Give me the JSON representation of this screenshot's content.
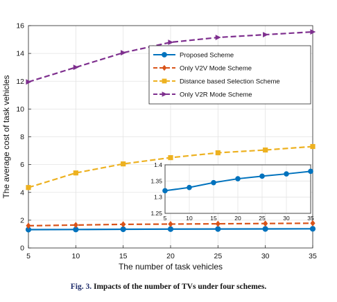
{
  "chart_data": {
    "type": "line",
    "xlabel": "The number of task vehicles",
    "ylabel": "The average cost of task vehicles",
    "x": [
      5,
      10,
      15,
      20,
      25,
      30,
      35
    ],
    "xlim": [
      5,
      35
    ],
    "ylim": [
      0,
      16
    ],
    "xticks": [
      "5",
      "10",
      "15",
      "20",
      "25",
      "30",
      "35"
    ],
    "yticks": [
      "0",
      "2",
      "4",
      "6",
      "8",
      "10",
      "12",
      "14",
      "16"
    ],
    "grid": true,
    "legend_position": "top-right",
    "series": [
      {
        "name": "Proposed Scheme",
        "values": [
          1.32,
          1.33,
          1.345,
          1.357,
          1.365,
          1.372,
          1.38
        ],
        "color": "#0072BD",
        "marker": "circle",
        "style": "solid"
      },
      {
        "name": "Only V2V Mode Scheme",
        "values": [
          1.6,
          1.65,
          1.7,
          1.72,
          1.74,
          1.76,
          1.78
        ],
        "color": "#D95319",
        "marker": "diamond",
        "style": "dashed"
      },
      {
        "name": "Distance based Selection Scheme",
        "values": [
          4.35,
          5.4,
          6.05,
          6.5,
          6.85,
          7.05,
          7.3
        ],
        "color": "#EDB120",
        "marker": "square",
        "style": "dashed"
      },
      {
        "name": "Only V2R Mode Scheme",
        "values": [
          11.95,
          13.0,
          14.05,
          14.8,
          15.15,
          15.35,
          15.55
        ],
        "color": "#7E2F8E",
        "marker": "triangle-right",
        "style": "dashed"
      }
    ],
    "inset": {
      "series": "Proposed Scheme",
      "x": [
        5,
        10,
        15,
        20,
        25,
        30,
        35
      ],
      "xlim": [
        5,
        35
      ],
      "ylim": [
        1.25,
        1.4
      ],
      "xticks": [
        "5",
        "10",
        "15",
        "20",
        "25",
        "30",
        "35"
      ],
      "yticks": [
        "1.25",
        "1.3",
        "1.35",
        "1.4"
      ],
      "values": [
        1.32,
        1.33,
        1.345,
        1.357,
        1.365,
        1.372,
        1.38
      ]
    }
  },
  "caption": {
    "fig_label": "Fig. 3.",
    "text": "Impacts of the number of TVs under four schemes."
  }
}
